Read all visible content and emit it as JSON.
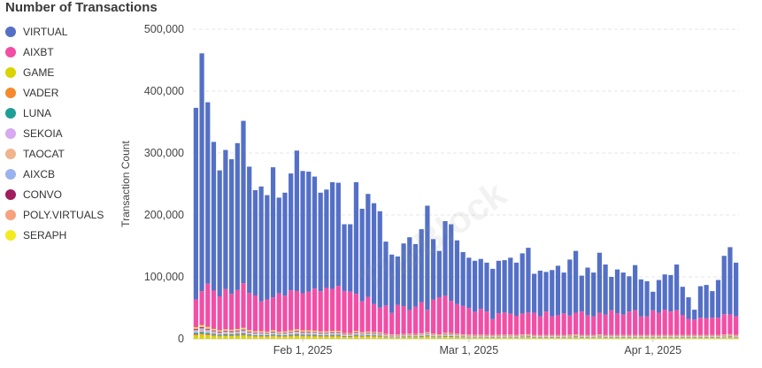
{
  "chart_data": {
    "type": "bar",
    "stacked": true,
    "title": "Number of Transactions",
    "ylabel": "Transaction Count",
    "xlabel": "",
    "ylim": [
      0,
      500000
    ],
    "y_ticks": [
      "0",
      "100,000",
      "200,000",
      "300,000",
      "400,000",
      "500,000"
    ],
    "x_ticks": [
      {
        "label": "Feb 1, 2025",
        "date": "2025-02-01"
      },
      {
        "label": "Mar 1, 2025",
        "date": "2025-03-01"
      },
      {
        "label": "Apr 1, 2025",
        "date": "2025-04-01"
      }
    ],
    "grid": "horizontal",
    "legend_position": "left",
    "x_start": "2025-01-14",
    "totals": [
      373000,
      461000,
      382000,
      318000,
      272000,
      305000,
      290000,
      316000,
      352000,
      278000,
      240000,
      246000,
      232000,
      277000,
      228000,
      236000,
      267000,
      304000,
      271000,
      270000,
      262000,
      236000,
      241000,
      253000,
      252000,
      185000,
      185000,
      253000,
      210000,
      234000,
      219000,
      206000,
      157000,
      136000,
      133000,
      154000,
      164000,
      153000,
      177000,
      215000,
      161000,
      142000,
      190000,
      185000,
      159000,
      140000,
      131000,
      126000,
      129000,
      123000,
      113000,
      126000,
      127000,
      131000,
      123000,
      138000,
      147000,
      105000,
      110000,
      108000,
      111000,
      118000,
      107000,
      128000,
      142000,
      102000,
      115000,
      107000,
      139000,
      120000,
      100000,
      112000,
      107000,
      101000,
      119000,
      96000,
      93000,
      76000,
      95000,
      104000,
      103000,
      120000,
      84000,
      67000,
      47000,
      85000,
      87000,
      77000,
      95000,
      134000,
      148000,
      123000
    ],
    "aixbt": [
      45000,
      55000,
      70000,
      62000,
      55000,
      65000,
      58000,
      63000,
      72000,
      60000,
      58000,
      48000,
      52000,
      53000,
      62000,
      58000,
      65000,
      62000,
      60000,
      63000,
      68000,
      65000,
      70000,
      68000,
      73000,
      68000,
      67000,
      60000,
      50000,
      56000,
      45000,
      40000,
      46000,
      35000,
      48000,
      45000,
      38000,
      44000,
      50000,
      36000,
      55000,
      60000,
      60000,
      52000,
      48000,
      46000,
      43000,
      37000,
      42000,
      38000,
      26000,
      35000,
      36000,
      34000,
      31000,
      34000,
      35000,
      36000,
      30000,
      38000,
      30000,
      32000,
      35000,
      31000,
      35000,
      38000,
      32000,
      30000,
      35000,
      33000,
      40000,
      35000,
      33000,
      38000,
      40000,
      30000,
      30000,
      40000,
      36000,
      41000,
      38000,
      40000,
      32000,
      26000,
      25000,
      28000,
      27000,
      28000,
      28000,
      33000,
      32000,
      30000
    ],
    "series": [
      {
        "name": "VIRTUAL",
        "color": "#5470c6"
      },
      {
        "name": "AIXBT",
        "color": "#f24ea6"
      },
      {
        "name": "GAME",
        "color": "#d9d400"
      },
      {
        "name": "VADER",
        "color": "#f58a2c"
      },
      {
        "name": "LUNA",
        "color": "#1f9e96"
      },
      {
        "name": "SEKOIA",
        "color": "#d8a8f0"
      },
      {
        "name": "TAOCAT",
        "color": "#f0b48c"
      },
      {
        "name": "AIXCB",
        "color": "#9ab3f0"
      },
      {
        "name": "CONVO",
        "color": "#a01d5e"
      },
      {
        "name": "POLY.VIRTUALS",
        "color": "#f6a27e"
      },
      {
        "name": "SERAPH",
        "color": "#f3ea20"
      }
    ]
  }
}
